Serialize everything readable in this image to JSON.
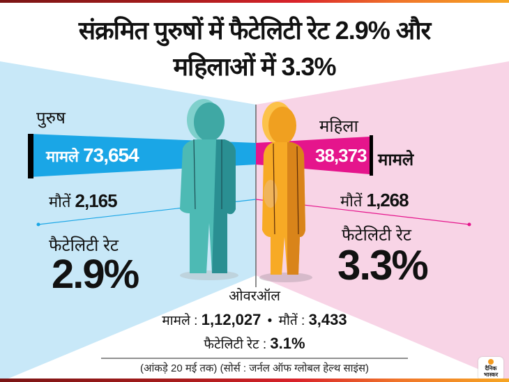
{
  "header": {
    "title_line1": "संक्रमित पुरुषों में फैटेलिटी रेट 2.9% और",
    "title_line2": "महिलाओं में 3.3%"
  },
  "male": {
    "label": "पुरुष",
    "cases_label": "मामले",
    "cases_value": "73,654",
    "deaths_label": "मौतें",
    "deaths_value": "2,165",
    "fatality_label": "फैटेलिटी रेट",
    "fatality_value": "2.9%",
    "color": "#1aa6e6"
  },
  "female": {
    "label": "महिला",
    "cases_label": "मामले",
    "cases_value": "38,373",
    "deaths_label": "मौतें",
    "deaths_value": "1,268",
    "fatality_label": "फैटेलिटी रेट",
    "fatality_value": "3.3%",
    "color": "#e5158c"
  },
  "overall": {
    "heading": "ओवरऑल",
    "cases_label": "मामले :",
    "cases_value": "1,12,027",
    "separator": "•",
    "deaths_label": "मौतें :",
    "deaths_value": "3,433",
    "fatality_label": "फैटेलिटी रेट :",
    "fatality_value": "3.1%"
  },
  "footer": {
    "note": "(आंकड़े 20 मई तक) (सोर्स : जर्नल ऑफ ग्लोबल हेल्थ साइंस)",
    "logo_text": "दैनिक भास्कर"
  },
  "colors": {
    "male_bg": "#c8e8f8",
    "female_bg": "#f8d4e6",
    "male_figure": "#3fb8b0",
    "female_figure": "#f5a623"
  }
}
